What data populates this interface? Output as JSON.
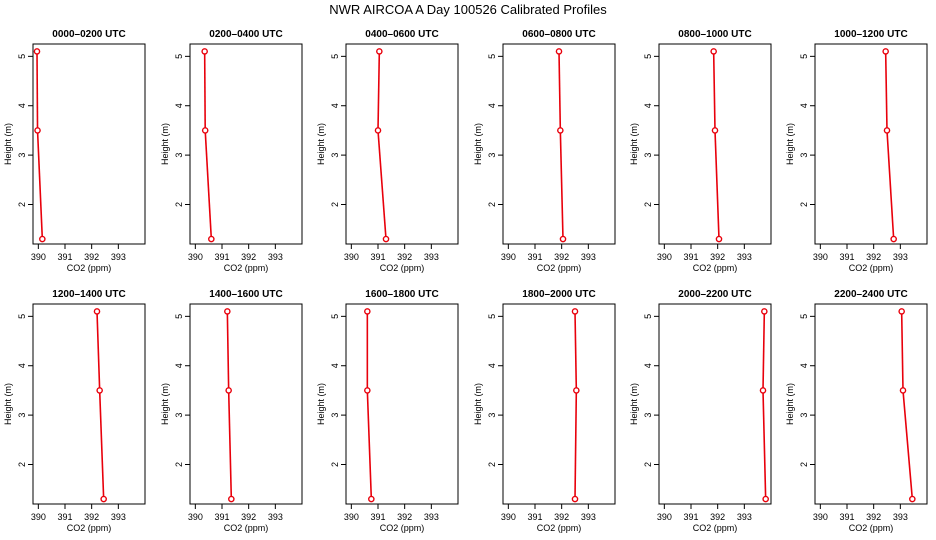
{
  "title": "NWR AIRCOA A  Day 100526  Calibrated Profiles",
  "chart_data": {
    "type": "line",
    "title": "NWR AIRCOA A  Day 100526  Calibrated Profiles",
    "xlabel": "CO2 (ppm)",
    "ylabel": "Height (m)",
    "xlim": [
      389.8,
      394.0
    ],
    "ylim": [
      1.2,
      5.25
    ],
    "xticks": [
      390,
      391,
      392,
      393
    ],
    "yticks": [
      2,
      3,
      4,
      5
    ],
    "panels": [
      {
        "title": "0000–0200 UTC",
        "heights": [
          5.1,
          3.5,
          1.3
        ],
        "co2": [
          389.95,
          389.97,
          390.15
        ]
      },
      {
        "title": "0200–0400 UTC",
        "heights": [
          5.1,
          3.5,
          1.3
        ],
        "co2": [
          390.35,
          390.37,
          390.6
        ]
      },
      {
        "title": "0400–0600 UTC",
        "heights": [
          5.1,
          3.5,
          1.3
        ],
        "co2": [
          391.05,
          391.0,
          391.3
        ]
      },
      {
        "title": "0600–0800 UTC",
        "heights": [
          5.1,
          3.5,
          1.3
        ],
        "co2": [
          391.9,
          391.95,
          392.05
        ]
      },
      {
        "title": "0800–1000 UTC",
        "heights": [
          5.1,
          3.5,
          1.3
        ],
        "co2": [
          391.85,
          391.9,
          392.05
        ]
      },
      {
        "title": "1000–1200 UTC",
        "heights": [
          5.1,
          3.5,
          1.3
        ],
        "co2": [
          392.45,
          392.5,
          392.75
        ]
      },
      {
        "title": "1200–1400 UTC",
        "heights": [
          5.1,
          3.5,
          1.3
        ],
        "co2": [
          392.2,
          392.3,
          392.45
        ]
      },
      {
        "title": "1400–1600 UTC",
        "heights": [
          5.1,
          3.5,
          1.3
        ],
        "co2": [
          391.2,
          391.25,
          391.35
        ]
      },
      {
        "title": "1600–1800 UTC",
        "heights": [
          5.1,
          3.5,
          1.3
        ],
        "co2": [
          390.6,
          390.6,
          390.75
        ]
      },
      {
        "title": "1800–2000 UTC",
        "heights": [
          5.1,
          3.5,
          1.3
        ],
        "co2": [
          392.5,
          392.55,
          392.5
        ]
      },
      {
        "title": "2000–2200 UTC",
        "heights": [
          5.1,
          3.5,
          1.3
        ],
        "co2": [
          393.75,
          393.7,
          393.8
        ]
      },
      {
        "title": "2200–2400 UTC",
        "heights": [
          5.1,
          3.5,
          1.3
        ],
        "co2": [
          393.05,
          393.1,
          393.45
        ]
      }
    ]
  }
}
